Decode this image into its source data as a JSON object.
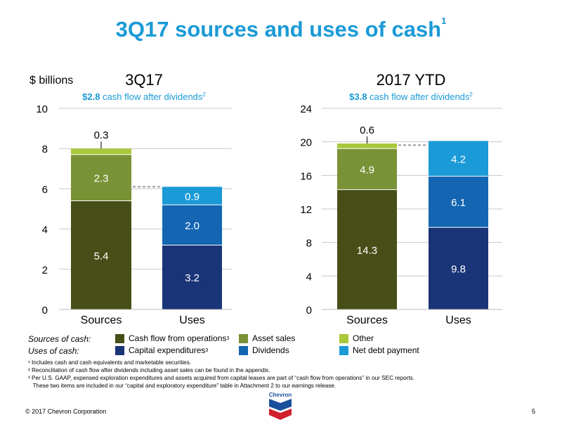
{
  "title": "3Q17 sources and uses of cash",
  "title_superscript": "1",
  "unit_label": "$ billions",
  "chart_data": [
    {
      "type": "bar",
      "stacked": true,
      "title": "3Q17",
      "subtitle_value": "$2.8",
      "subtitle_text": " cash flow after dividends",
      "subtitle_superscript": "2",
      "ylim": [
        0,
        10
      ],
      "yticks": [
        "0",
        "2",
        "4",
        "6",
        "8",
        "10"
      ],
      "categories": [
        "Sources",
        "Uses"
      ],
      "series": [
        {
          "name": "Cash flow from operations",
          "category": "Sources",
          "start": 0,
          "value": 5.4,
          "label": "5.4",
          "color": "#484e17"
        },
        {
          "name": "Asset sales",
          "category": "Sources",
          "start": 5.4,
          "value": 2.3,
          "label": "2.3",
          "color": "#799236"
        },
        {
          "name": "Other",
          "category": "Sources",
          "start": 7.7,
          "value": 0.3,
          "label": "0.3",
          "color": "#a9c93c"
        },
        {
          "name": "Capital expenditures",
          "category": "Uses",
          "start": 0,
          "value": 3.2,
          "label": "3.2",
          "color": "#1a3478"
        },
        {
          "name": "Dividends",
          "category": "Uses",
          "start": 3.2,
          "value": 2.0,
          "label": "2.0",
          "color": "#1466b2"
        },
        {
          "name": "Net debt payment",
          "category": "Uses",
          "start": 5.2,
          "value": 0.9,
          "label": "0.9",
          "color": "#1a9ad6"
        }
      ],
      "dashed_connector_value": 6.1
    },
    {
      "type": "bar",
      "stacked": true,
      "title": "2017 YTD",
      "subtitle_value": "$3.8",
      "subtitle_text": " cash flow after dividends",
      "subtitle_superscript": "2",
      "ylim": [
        0,
        24
      ],
      "yticks": [
        "0",
        "4",
        "8",
        "12",
        "16",
        "20",
        "24"
      ],
      "categories": [
        "Sources",
        "Uses"
      ],
      "series": [
        {
          "name": "Cash flow from operations",
          "category": "Sources",
          "start": 0,
          "value": 14.3,
          "label": "14.3",
          "color": "#484e17"
        },
        {
          "name": "Asset sales",
          "category": "Sources",
          "start": 14.3,
          "value": 4.9,
          "label": "4.9",
          "color": "#799236"
        },
        {
          "name": "Other",
          "category": "Sources",
          "start": 19.2,
          "value": 0.6,
          "label": "0.6",
          "color": "#a9c93c"
        },
        {
          "name": "Capital expenditures",
          "category": "Uses",
          "start": 0,
          "value": 9.8,
          "label": "9.8",
          "color": "#1a3478"
        },
        {
          "name": "Dividends",
          "category": "Uses",
          "start": 9.8,
          "value": 6.1,
          "label": "6.1",
          "color": "#1466b2"
        },
        {
          "name": "Net debt payment",
          "category": "Uses",
          "start": 15.9,
          "value": 4.2,
          "label": "4.2",
          "color": "#1a9ad6"
        }
      ],
      "dashed_connector_value": 19.6
    }
  ],
  "legend": {
    "sources_caption": "Sources of cash:",
    "uses_caption": "Uses of cash:",
    "items": {
      "cfo": {
        "label": "Cash flow from operations",
        "sup": "3",
        "color": "#484e17"
      },
      "asset": {
        "label": "Asset sales",
        "sup": "",
        "color": "#799236"
      },
      "other": {
        "label": "Other",
        "sup": "",
        "color": "#a9c93c"
      },
      "capex": {
        "label": "Capital expenditures",
        "sup": "3",
        "color": "#1a3478"
      },
      "div": {
        "label": "Dividends",
        "sup": "",
        "color": "#1466b2"
      },
      "debt": {
        "label": "Net debt payment",
        "sup": "",
        "color": "#1a9ad6"
      }
    }
  },
  "footnotes": [
    "¹ Includes cash and cash equivalents and marketable securities.",
    "² Reconciliation of cash flow after dividends including asset sales can be found in the appendix.",
    "³ Per U.S. GAAP, expensed exploration expenditures and assets acquired from capital leases are part of “cash flow from operations” in our SEC reports.",
    "   These two items are included in our “capital and exploratory expenditure” table in Attachment 2 to our earnings release."
  ],
  "copyright": "© 2017 Chevron Corporation",
  "page_number": "5",
  "logo_text": "Chevron",
  "colors": {
    "title": "#1a9ad6",
    "subtitle_accent": "#1a9ad6",
    "grid": "#c8c8c8",
    "logo_red": "#d0202e",
    "logo_blue": "#1a4f9c"
  }
}
